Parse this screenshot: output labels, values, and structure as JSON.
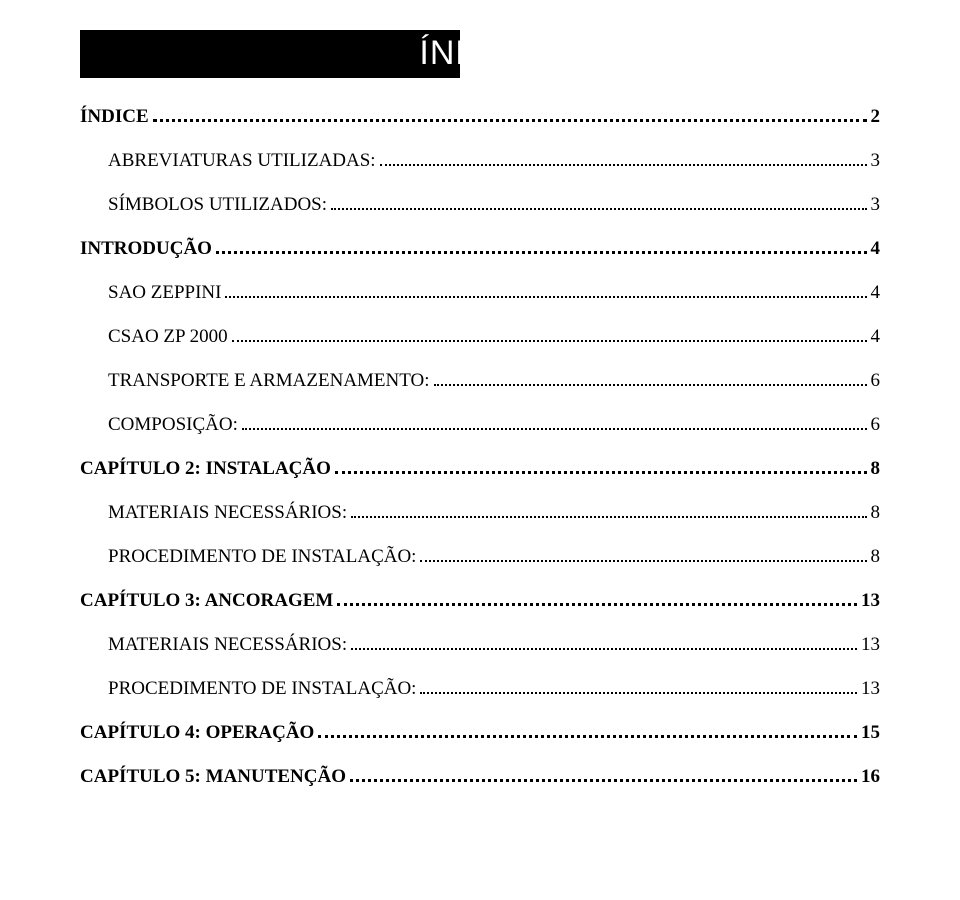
{
  "header": {
    "title": "ÍNDICE"
  },
  "toc": {
    "entries": [
      {
        "label": "ÍNDICE",
        "page": "2",
        "bold": true,
        "indent": 0
      },
      {
        "label": "ABREVIATURAS UTILIZADAS:",
        "page": "3",
        "bold": false,
        "indent": 1
      },
      {
        "label": "SÍMBOLOS UTILIZADOS:",
        "page": "3",
        "bold": false,
        "indent": 1
      },
      {
        "label": "INTRODUÇÃO",
        "page": "4",
        "bold": true,
        "indent": 0
      },
      {
        "label": "SAO ZEPPINI",
        "page": "4",
        "bold": false,
        "indent": 1
      },
      {
        "label": "CSAO ZP 2000",
        "page": "4",
        "bold": false,
        "indent": 1
      },
      {
        "label": "TRANSPORTE E ARMAZENAMENTO:",
        "page": "6",
        "bold": false,
        "indent": 1
      },
      {
        "label": "COMPOSIÇÃO:",
        "page": "6",
        "bold": false,
        "indent": 1
      },
      {
        "label": "CAPÍTULO 2: INSTALAÇÃO",
        "page": "8",
        "bold": true,
        "indent": 0
      },
      {
        "label": "MATERIAIS NECESSÁRIOS:",
        "page": "8",
        "bold": false,
        "indent": 1
      },
      {
        "label": "PROCEDIMENTO DE INSTALAÇÃO:",
        "page": "8",
        "bold": false,
        "indent": 1
      },
      {
        "label": "CAPÍTULO 3: ANCORAGEM",
        "page": "13",
        "bold": true,
        "indent": 0
      },
      {
        "label": "MATERIAIS NECESSÁRIOS:",
        "page": "13",
        "bold": false,
        "indent": 1
      },
      {
        "label": "PROCEDIMENTO DE INSTALAÇÃO:",
        "page": "13",
        "bold": false,
        "indent": 1
      },
      {
        "label": "CAPÍTULO 4: OPERAÇÃO",
        "page": "15",
        "bold": true,
        "indent": 0
      },
      {
        "label": "CAPÍTULO 5: MANUTENÇÃO",
        "page": "16",
        "bold": true,
        "indent": 0
      }
    ]
  },
  "styles": {
    "page_bg": "#ffffff",
    "text_color": "#000000",
    "header_bar_color": "#000000",
    "header_text_color": "#ffffff",
    "font_family_body": "Times New Roman",
    "font_family_header": "Arial",
    "font_size_body_pt": 14,
    "font_size_header_pt": 26,
    "dot_leader_color": "#000000"
  }
}
